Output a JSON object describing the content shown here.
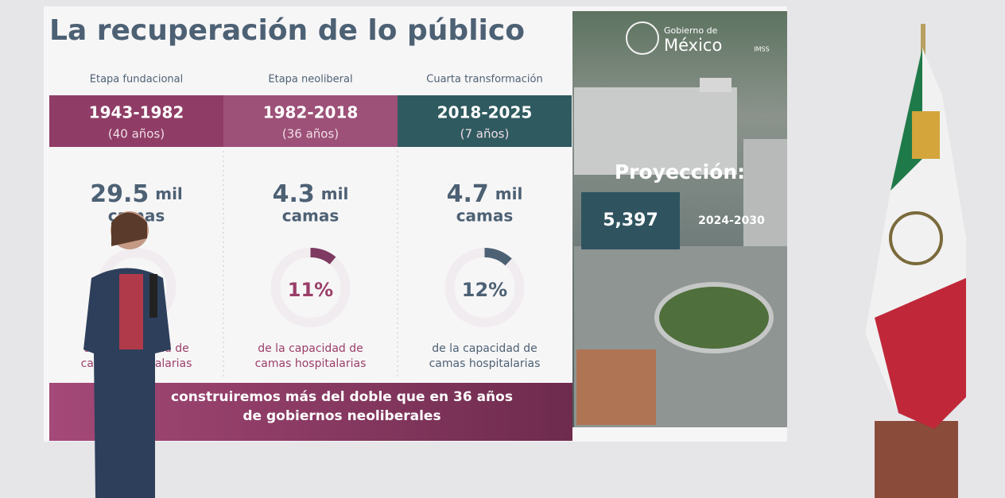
{
  "slide": {
    "title": "La recuperación de lo público",
    "columns": [
      {
        "stage": "Etapa fundacional",
        "years": "1943-1982",
        "duration": "(40 años)",
        "amount": "29.5",
        "unit": "mil",
        "noun": "camas",
        "caption": "de la capacidad de camas hospitalarias"
      },
      {
        "stage": "Etapa neoliberal",
        "years": "1982-2018",
        "duration": "(36 años)",
        "amount": "4.3",
        "unit": "mil",
        "noun": "camas",
        "percent": 11,
        "percent_label": "11%",
        "caption": "de la capacidad de camas hospitalarias"
      },
      {
        "stage": "Cuarta transformación",
        "years": "2018-2025",
        "duration": "(7 años)",
        "amount": "4.7",
        "unit": "mil",
        "noun": "camas",
        "percent": 12,
        "percent_label": "12%",
        "caption": "de la capacidad de camas hospitalarias"
      }
    ],
    "banner": "construiremos más del doble que en 36 años de gobiernos neoliberales",
    "logo": {
      "line1": "Gobierno de",
      "line2": "México",
      "agency": "IMSS"
    },
    "projection": {
      "heading": "Proyección:",
      "value": "5,397",
      "period": "2024-2030"
    }
  }
}
